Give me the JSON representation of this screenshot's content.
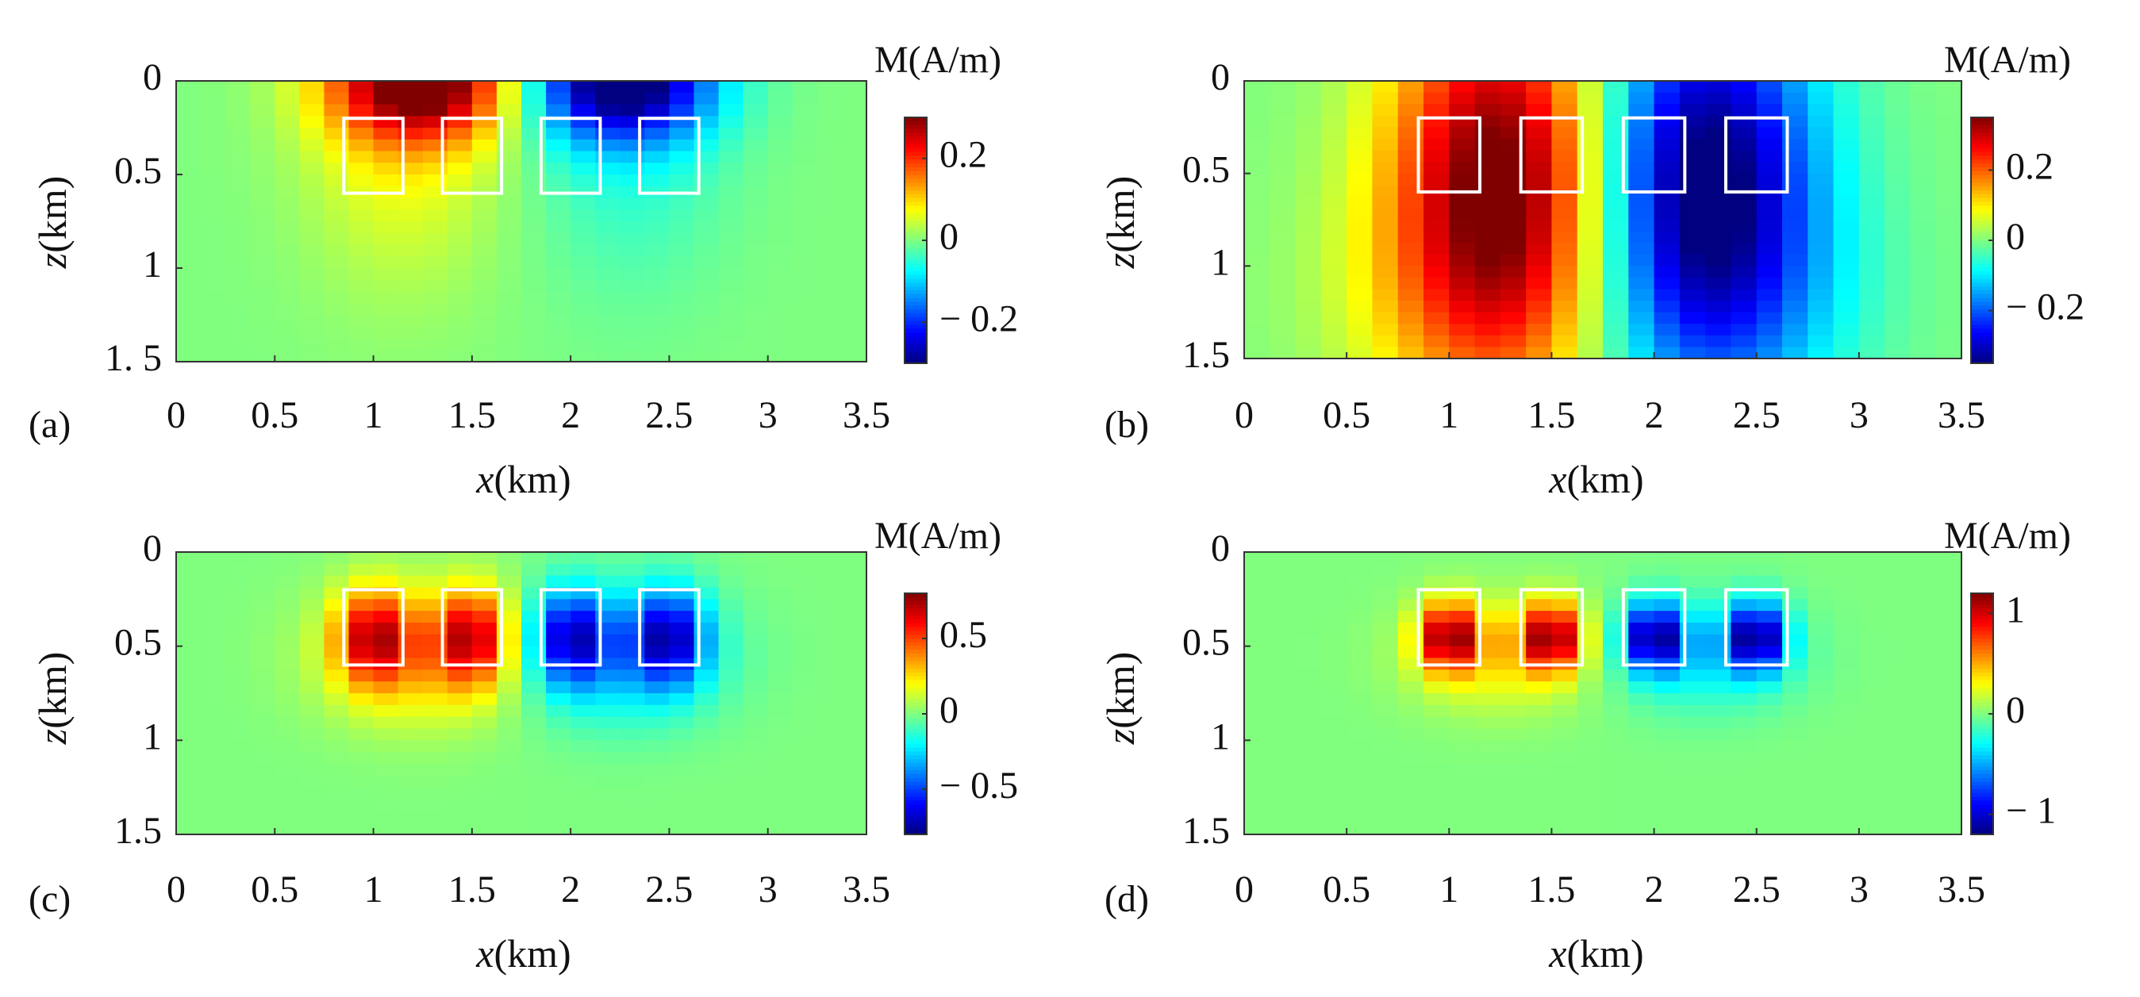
{
  "figure": {
    "xlabel_var": "x",
    "xlabel_unit": "(km)",
    "ylabel_var": "z",
    "ylabel_unit": "(km)",
    "colorbar_title": "M(A/m)"
  },
  "chart_data": [
    {
      "type": "heatmap",
      "panel_label": "(a)",
      "xlim": [
        0,
        3.5
      ],
      "ylim": [
        0,
        1.5
      ],
      "y_reversed": true,
      "xticks": [
        0,
        0.5,
        1,
        1.5,
        2,
        2.5,
        3,
        3.5
      ],
      "xtick_labels": [
        "0",
        "0.5",
        "1",
        "1.5",
        "2",
        "2.5",
        "3",
        "3.5"
      ],
      "yticks": [
        0,
        0.5,
        1,
        1.5
      ],
      "ytick_labels": [
        "0",
        "0.5",
        "1",
        "1. 5"
      ],
      "clim": [
        -0.3,
        0.3
      ],
      "colorbar_ticks": [
        0.2,
        0,
        -0.2
      ],
      "colorbar_tick_labels": [
        "0.2",
        "0",
        "− 0.2"
      ],
      "colormap": "jet",
      "grid_dx_km": 0.125,
      "grid_dz_km": 0.0625,
      "model_boxes_km": [
        [
          0.85,
          1.15,
          0.2,
          0.6
        ],
        [
          1.35,
          1.65,
          0.2,
          0.6
        ],
        [
          1.85,
          2.15,
          0.2,
          0.6
        ],
        [
          2.35,
          2.65,
          0.2,
          0.6
        ]
      ],
      "sources": [
        {
          "x": 1.25,
          "z": 0.0,
          "amp": 0.3,
          "sx": 0.32,
          "sz": 0.22
        },
        {
          "x": 1.15,
          "z": 0.2,
          "amp": 0.08,
          "sx": 0.35,
          "sz": 0.6
        },
        {
          "x": 2.25,
          "z": 0.0,
          "amp": -0.3,
          "sx": 0.32,
          "sz": 0.22
        },
        {
          "x": 2.3,
          "z": 0.2,
          "amp": -0.06,
          "sx": 0.35,
          "sz": 0.6
        }
      ]
    },
    {
      "type": "heatmap",
      "panel_label": "(b)",
      "xlim": [
        0,
        3.5
      ],
      "ylim": [
        0,
        1.5
      ],
      "y_reversed": true,
      "xticks": [
        0,
        0.5,
        1,
        1.5,
        2,
        2.5,
        3,
        3.5
      ],
      "xtick_labels": [
        "0",
        "0.5",
        "1",
        "1.5",
        "2",
        "2.5",
        "3",
        "3.5"
      ],
      "yticks": [
        0,
        0.5,
        1,
        1.5
      ],
      "ytick_labels": [
        "0",
        "0.5",
        "1",
        "1.5"
      ],
      "clim": [
        -0.35,
        0.35
      ],
      "colorbar_ticks": [
        0.2,
        0,
        -0.2
      ],
      "colorbar_tick_labels": [
        "0.2",
        "0",
        "− 0.2"
      ],
      "colormap": "jet",
      "grid_dx_km": 0.125,
      "grid_dz_km": 0.0625,
      "model_boxes_km": [
        [
          0.85,
          1.15,
          0.2,
          0.6
        ],
        [
          1.35,
          1.65,
          0.2,
          0.6
        ],
        [
          1.85,
          2.15,
          0.2,
          0.6
        ],
        [
          2.35,
          2.65,
          0.2,
          0.6
        ]
      ],
      "sources": [
        {
          "x": 1.25,
          "z": 0.45,
          "amp": 0.35,
          "sx": 0.38,
          "sz": 0.7
        },
        {
          "x": 1.25,
          "z": 1.2,
          "amp": 0.12,
          "sx": 0.5,
          "sz": 0.5
        },
        {
          "x": 2.25,
          "z": 0.45,
          "amp": -0.35,
          "sx": 0.38,
          "sz": 0.7
        },
        {
          "x": 2.25,
          "z": 1.2,
          "amp": -0.12,
          "sx": 0.5,
          "sz": 0.5
        }
      ]
    },
    {
      "type": "heatmap",
      "panel_label": "(c)",
      "xlim": [
        0,
        3.5
      ],
      "ylim": [
        0,
        1.5
      ],
      "y_reversed": true,
      "xticks": [
        0,
        0.5,
        1,
        1.5,
        2,
        2.5,
        3,
        3.5
      ],
      "xtick_labels": [
        "0",
        "0.5",
        "1",
        "1.5",
        "2",
        "2.5",
        "3",
        "3.5"
      ],
      "yticks": [
        0,
        0.5,
        1,
        1.5
      ],
      "ytick_labels": [
        "0",
        "0.5",
        "1",
        "1.5"
      ],
      "clim": [
        -0.8,
        0.8
      ],
      "colorbar_ticks": [
        0.5,
        0,
        -0.5
      ],
      "colorbar_tick_labels": [
        "0.5",
        "0",
        "− 0.5"
      ],
      "colormap": "jet",
      "grid_dx_km": 0.125,
      "grid_dz_km": 0.0625,
      "model_boxes_km": [
        [
          0.85,
          1.15,
          0.2,
          0.6
        ],
        [
          1.35,
          1.65,
          0.2,
          0.6
        ],
        [
          1.85,
          2.15,
          0.2,
          0.6
        ],
        [
          2.35,
          2.65,
          0.2,
          0.6
        ]
      ],
      "sources": [
        {
          "x": 1.0,
          "z": 0.45,
          "amp": 0.55,
          "sx": 0.13,
          "sz": 0.18
        },
        {
          "x": 1.5,
          "z": 0.45,
          "amp": 0.55,
          "sx": 0.13,
          "sz": 0.18
        },
        {
          "x": 1.25,
          "z": 0.55,
          "amp": 0.3,
          "sx": 0.35,
          "sz": 0.25
        },
        {
          "x": 2.0,
          "z": 0.45,
          "amp": -0.55,
          "sx": 0.13,
          "sz": 0.18
        },
        {
          "x": 2.5,
          "z": 0.45,
          "amp": -0.55,
          "sx": 0.13,
          "sz": 0.18
        },
        {
          "x": 2.25,
          "z": 0.55,
          "amp": -0.3,
          "sx": 0.35,
          "sz": 0.25
        }
      ]
    },
    {
      "type": "heatmap",
      "panel_label": "(d)",
      "xlim": [
        0,
        3.5
      ],
      "ylim": [
        0,
        1.5
      ],
      "y_reversed": true,
      "xticks": [
        0,
        0.5,
        1,
        1.5,
        2,
        2.5,
        3,
        3.5
      ],
      "xtick_labels": [
        "0",
        "0.5",
        "1",
        "1.5",
        "2",
        "2.5",
        "3",
        "3.5"
      ],
      "yticks": [
        0,
        0.5,
        1,
        1.5
      ],
      "ytick_labels": [
        "0",
        "0.5",
        "1",
        "1.5"
      ],
      "clim": [
        -1.2,
        1.2
      ],
      "colorbar_ticks": [
        1,
        0,
        -1
      ],
      "colorbar_tick_labels": [
        "1",
        "0",
        "− 1"
      ],
      "colormap": "jet",
      "grid_dx_km": 0.125,
      "grid_dz_km": 0.0625,
      "model_boxes_km": [
        [
          0.85,
          1.15,
          0.2,
          0.6
        ],
        [
          1.35,
          1.65,
          0.2,
          0.6
        ],
        [
          1.85,
          2.15,
          0.2,
          0.6
        ],
        [
          2.35,
          2.65,
          0.2,
          0.6
        ]
      ],
      "sources": [
        {
          "x": 1.0,
          "z": 0.45,
          "amp": 1.05,
          "sx": 0.1,
          "sz": 0.13
        },
        {
          "x": 1.5,
          "z": 0.45,
          "amp": 1.05,
          "sx": 0.1,
          "sz": 0.13
        },
        {
          "x": 1.25,
          "z": 0.55,
          "amp": 0.35,
          "sx": 0.3,
          "sz": 0.2
        },
        {
          "x": 2.0,
          "z": 0.45,
          "amp": -1.05,
          "sx": 0.1,
          "sz": 0.13
        },
        {
          "x": 2.5,
          "z": 0.45,
          "amp": -1.05,
          "sx": 0.1,
          "sz": 0.13
        },
        {
          "x": 2.25,
          "z": 0.55,
          "amp": -0.35,
          "sx": 0.3,
          "sz": 0.2
        }
      ]
    }
  ]
}
